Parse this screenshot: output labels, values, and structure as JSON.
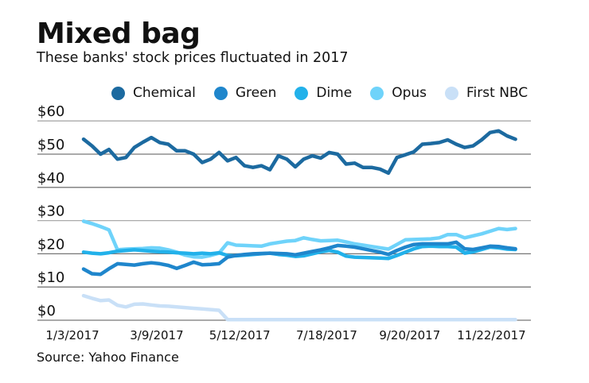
{
  "chart_data": {
    "type": "line",
    "title": "Mixed bag",
    "subtitle": "These banks' stock prices fluctuated in 2017",
    "source": "Source: Yahoo Finance",
    "ylim": [
      0,
      60
    ],
    "yticks": [
      60,
      50,
      40,
      30,
      20,
      10,
      0
    ],
    "ytick_labels": [
      "$60",
      "$50",
      "$40",
      "$30",
      "$20",
      "$10",
      "$0"
    ],
    "xtick_dates": [
      "2017-01-03",
      "2017-03-09",
      "2017-05-12",
      "2017-07-18",
      "2017-09-20",
      "2017-11-22"
    ],
    "xtick_labels": [
      "1/3/2017",
      "3/9/2017",
      "5/12/2017",
      "7/18/2017",
      "9/20/2017",
      "11/22/2017"
    ],
    "grid": "horizontal",
    "legend": "top",
    "x": [
      "2017-01-03",
      "2017-01-10",
      "2017-01-17",
      "2017-01-24",
      "2017-01-31",
      "2017-02-07",
      "2017-02-14",
      "2017-02-21",
      "2017-02-28",
      "2017-03-07",
      "2017-03-14",
      "2017-03-21",
      "2017-03-28",
      "2017-04-04",
      "2017-04-11",
      "2017-04-18",
      "2017-04-25",
      "2017-05-02",
      "2017-05-09",
      "2017-05-16",
      "2017-05-23",
      "2017-05-30",
      "2017-06-06",
      "2017-06-13",
      "2017-06-20",
      "2017-06-27",
      "2017-07-04",
      "2017-07-11",
      "2017-07-18",
      "2017-07-25",
      "2017-08-01",
      "2017-08-08",
      "2017-08-15",
      "2017-08-22",
      "2017-08-29",
      "2017-09-05",
      "2017-09-12",
      "2017-09-19",
      "2017-09-26",
      "2017-10-03",
      "2017-10-10",
      "2017-10-17",
      "2017-10-24",
      "2017-10-31",
      "2017-11-07",
      "2017-11-14",
      "2017-11-21",
      "2017-11-28",
      "2017-12-05",
      "2017-12-12",
      "2017-12-19",
      "2017-12-26"
    ],
    "series": [
      {
        "name": "Chemical",
        "color": "#1c6aa0",
        "values": [
          54.5,
          52.5,
          50,
          51.4,
          48.5,
          49,
          52,
          53.6,
          55,
          53.5,
          53,
          51,
          51,
          50,
          47.5,
          48.5,
          50.5,
          48,
          49,
          46.5,
          46,
          46.5,
          45.3,
          49.5,
          48.5,
          46.2,
          48.5,
          49.5,
          48.8,
          50.5,
          50,
          47,
          47.3,
          46,
          46,
          45.5,
          44.3,
          49,
          49.8,
          50.7,
          53,
          53.2,
          53.5,
          54.3,
          53,
          52,
          52.5,
          54.3,
          56.5,
          57,
          55.5,
          54.5
        ]
      },
      {
        "name": "Green",
        "color": "#1f86cc",
        "values": [
          15.4,
          14,
          13.8,
          15.5,
          17,
          16.8,
          16.6,
          17,
          17.3,
          17,
          16.5,
          15.6,
          16.5,
          17.5,
          16.7,
          16.8,
          17,
          19,
          19.5,
          19.8,
          20,
          20.1,
          20.2,
          20.1,
          20,
          19.7,
          20.2,
          20.7,
          21.2,
          21.8,
          22.5,
          22.3,
          22,
          21.5,
          21,
          20.5,
          19.8,
          21,
          22,
          22.8,
          23,
          23,
          23,
          23,
          23.5,
          21.5,
          21.3,
          21.8,
          22.3,
          22.2,
          21.8,
          21.5
        ]
      },
      {
        "name": "Dime",
        "color": "#22b1ea",
        "values": [
          20.5,
          20.2,
          20,
          20.3,
          20.8,
          21,
          21.2,
          21,
          20.8,
          20.6,
          20.5,
          20.3,
          20.2,
          20,
          20.2,
          20,
          20.3,
          19.5,
          19.4,
          19.6,
          19.8,
          20,
          20.2,
          19.8,
          19.6,
          19.2,
          19.4,
          20,
          20.6,
          21,
          20.5,
          19.3,
          19,
          18.9,
          18.8,
          18.7,
          18.6,
          19.5,
          20.5,
          21.5,
          22.2,
          22.3,
          22.2,
          22.2,
          22,
          20.2,
          20.6,
          21.3,
          22,
          21.8,
          21.4,
          21.3
        ]
      },
      {
        "name": "Opus",
        "color": "#6fd3fa",
        "values": [
          29.8,
          29.1,
          28.2,
          27.2,
          21.2,
          21.4,
          21.5,
          21.6,
          21.8,
          21.7,
          21.2,
          20.5,
          19.6,
          19.1,
          19,
          19.5,
          20.2,
          23.3,
          22.6,
          22.5,
          22.4,
          22.3,
          23,
          23.4,
          23.8,
          24,
          24.8,
          24.3,
          23.9,
          24,
          24.1,
          23.6,
          23,
          22.6,
          22.2,
          21.8,
          21.4,
          22.8,
          24.2,
          24.3,
          24.4,
          24.5,
          24.8,
          25.8,
          25.8,
          24.8,
          25.4,
          26,
          26.8,
          27.6,
          27.3,
          27.6
        ]
      },
      {
        "name": "First NBC",
        "color": "#c9e0f7",
        "values": [
          7.4,
          6.6,
          5.9,
          6.1,
          4.5,
          4,
          4.8,
          4.9,
          4.6,
          4.3,
          4.2,
          4,
          3.8,
          3.6,
          3.4,
          3.2,
          3,
          0.2,
          0.2,
          0.2,
          0.2,
          0.2,
          0.2,
          0.2,
          0.2,
          0.2,
          0.2,
          0.2,
          0.2,
          0.2,
          0.2,
          0.2,
          0.2,
          0.2,
          0.2,
          0.2,
          0.2,
          0.2,
          0.2,
          0.2,
          0.2,
          0.2,
          0.2,
          0.2,
          0.2,
          0.2,
          0.2,
          0.2,
          0.2,
          0.2,
          0.2,
          0.2
        ]
      }
    ]
  }
}
